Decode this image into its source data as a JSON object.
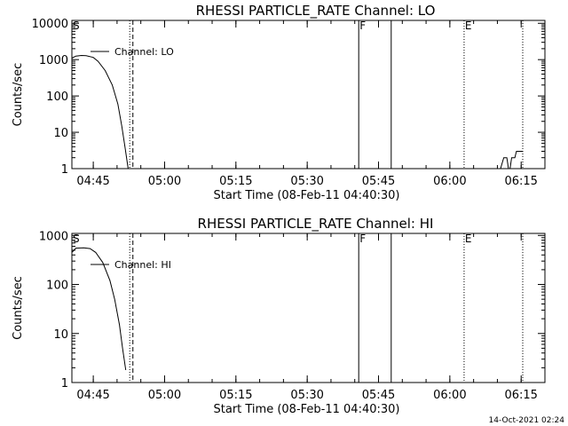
{
  "footer": {
    "timestamp": "14-Oct-2021 02:24"
  },
  "chart_data": [
    {
      "type": "line",
      "title": "RHESSI PARTICLE_RATE Channel: LO",
      "xlabel": "Start Time (08-Feb-11 04:40:30)",
      "ylabel": "Counts/sec",
      "yscale": "log",
      "xlim": [
        "04:40:30",
        "06:20:00"
      ],
      "ylim": [
        1,
        12000
      ],
      "x_ticks": [
        "04:45",
        "05:00",
        "05:15",
        "05:30",
        "05:45",
        "06:00",
        "06:15"
      ],
      "y_ticks": [
        {
          "label": "1",
          "value": 1
        },
        {
          "label": "10",
          "value": 10
        },
        {
          "label": "100",
          "value": 100
        },
        {
          "label": "1000",
          "value": 1000
        },
        {
          "label": "10000",
          "value": 10000
        }
      ],
      "legend": {
        "text": "Channel: LO",
        "position": "top-left"
      },
      "markers": [
        {
          "label": "S",
          "time": "04:40:30",
          "style": "none"
        },
        {
          "label": "",
          "time": "04:52:40",
          "style": "dotted"
        },
        {
          "label": "",
          "time": "04:53:20",
          "style": "dashed"
        },
        {
          "label": "F",
          "time": "05:40:50",
          "style": "solid"
        },
        {
          "label": "",
          "time": "05:47:40",
          "style": "solid"
        },
        {
          "label": "E",
          "time": "06:03:00",
          "style": "dotted"
        },
        {
          "label": "",
          "time": "06:15:20",
          "style": "dotted"
        }
      ],
      "series": [
        {
          "name": "Channel: LO",
          "segments": [
            [
              {
                "x": "04:40:30",
                "y": 1100
              },
              {
                "x": "04:41:20",
                "y": 1250
              },
              {
                "x": "04:42:30",
                "y": 1300
              },
              {
                "x": "04:43:30",
                "y": 1280
              },
              {
                "x": "04:45:00",
                "y": 1150
              },
              {
                "x": "04:46:00",
                "y": 900
              },
              {
                "x": "04:47:30",
                "y": 500
              },
              {
                "x": "04:49:00",
                "y": 200
              },
              {
                "x": "04:50:10",
                "y": 60
              },
              {
                "x": "04:51:00",
                "y": 15
              },
              {
                "x": "04:51:40",
                "y": 4
              },
              {
                "x": "04:52:20",
                "y": 1
              }
            ],
            [
              {
                "x": "06:10:40",
                "y": 1
              },
              {
                "x": "06:11:20",
                "y": 2
              },
              {
                "x": "06:12:00",
                "y": 2
              },
              {
                "x": "06:12:20",
                "y": 1
              },
              {
                "x": "06:12:40",
                "y": 1
              },
              {
                "x": "06:13:00",
                "y": 2
              },
              {
                "x": "06:13:40",
                "y": 2
              },
              {
                "x": "06:14:00",
                "y": 3
              },
              {
                "x": "06:15:20",
                "y": 3
              }
            ]
          ]
        }
      ]
    },
    {
      "type": "line",
      "title": "RHESSI PARTICLE_RATE Channel: HI",
      "xlabel": "Start Time (08-Feb-11 04:40:30)",
      "ylabel": "Counts/sec",
      "yscale": "log",
      "xlim": [
        "04:40:30",
        "06:20:00"
      ],
      "ylim": [
        1,
        1100
      ],
      "x_ticks": [
        "04:45",
        "05:00",
        "05:15",
        "05:30",
        "05:45",
        "06:00",
        "06:15"
      ],
      "y_ticks": [
        {
          "label": "1",
          "value": 1
        },
        {
          "label": "10",
          "value": 10
        },
        {
          "label": "100",
          "value": 100
        },
        {
          "label": "1000",
          "value": 1000
        }
      ],
      "legend": {
        "text": "Channel: HI",
        "position": "top-left"
      },
      "markers": [
        {
          "label": "S",
          "time": "04:40:30",
          "style": "none"
        },
        {
          "label": "",
          "time": "04:52:40",
          "style": "dotted"
        },
        {
          "label": "",
          "time": "04:53:20",
          "style": "dashed"
        },
        {
          "label": "F",
          "time": "05:40:50",
          "style": "solid"
        },
        {
          "label": "",
          "time": "05:47:40",
          "style": "solid"
        },
        {
          "label": "E",
          "time": "06:03:00",
          "style": "dotted"
        },
        {
          "label": "",
          "time": "06:15:20",
          "style": "dotted"
        }
      ],
      "series": [
        {
          "name": "Channel: HI",
          "segments": [
            [
              {
                "x": "04:40:30",
                "y": 450
              },
              {
                "x": "04:41:20",
                "y": 550
              },
              {
                "x": "04:43:00",
                "y": 560
              },
              {
                "x": "04:44:20",
                "y": 540
              },
              {
                "x": "04:45:30",
                "y": 450
              },
              {
                "x": "04:47:00",
                "y": 280
              },
              {
                "x": "04:48:30",
                "y": 120
              },
              {
                "x": "04:49:30",
                "y": 50
              },
              {
                "x": "04:50:30",
                "y": 15
              },
              {
                "x": "04:51:10",
                "y": 5
              },
              {
                "x": "04:51:50",
                "y": 1.8
              }
            ]
          ]
        }
      ]
    }
  ]
}
